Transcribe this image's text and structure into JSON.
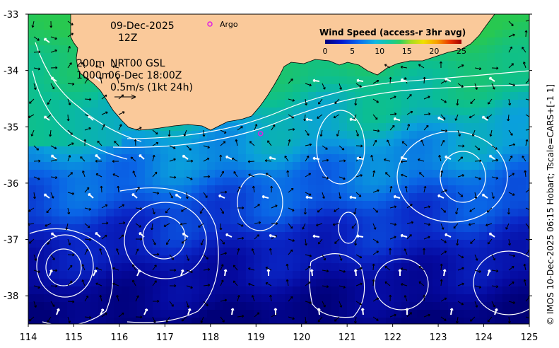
{
  "date": "09-Dec-2025",
  "hour": "12Z",
  "depth_label": "200m",
  "depth2_label": "1000m",
  "source_label": "NRT00 GSL",
  "altimetry_time": "06-Dec 18:00Z",
  "scale_label": "0.5m/s (1kt 24h)",
  "argo_label": "Argo",
  "colorbar": {
    "title": "Wind Speed (access-r 3hr avg)",
    "ticks": [
      "0",
      "5",
      "10",
      "15",
      "20",
      "25"
    ]
  },
  "axes": {
    "lon_ticks": [
      "114",
      "115",
      "116",
      "117",
      "118",
      "119",
      "120",
      "121",
      "122",
      "123",
      "124",
      "125"
    ],
    "lat_ticks": [
      "-33",
      "-34",
      "-35",
      "-36",
      "-37",
      "-38"
    ],
    "lon_range": [
      114,
      125
    ],
    "lat_range": [
      -38.5,
      -33
    ]
  },
  "credit": "© IMOS 10-Dec-2025 06:15 Hobart; Tscale=CARS+[-1 1]",
  "colors": {
    "land": "#fac99a",
    "argo": "#e020e0"
  },
  "argo_float": {
    "lon": 119.1,
    "lat": -35.12
  }
}
